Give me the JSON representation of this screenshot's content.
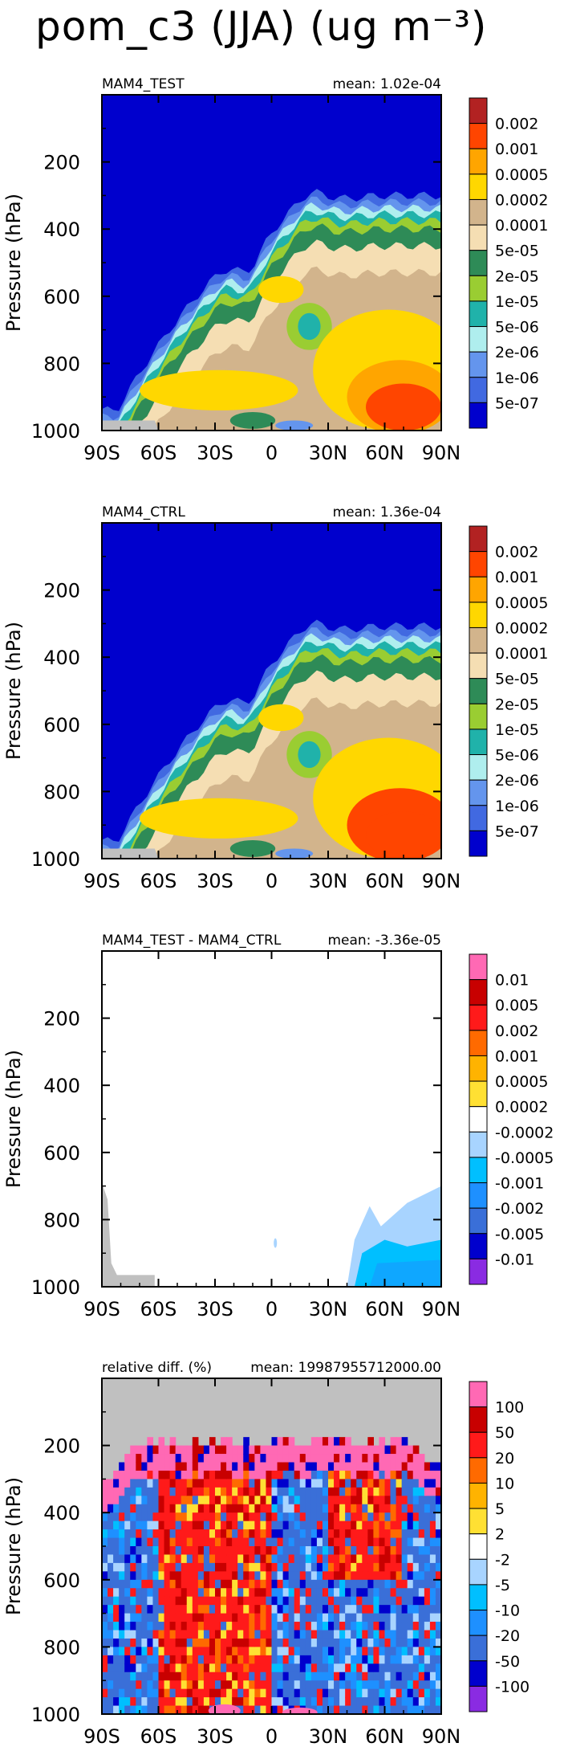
{
  "page_title": "pom_c3 (JJA) (ug m⁻³)",
  "chart_data": [
    {
      "type": "contour",
      "left_label": "MAM4_TEST",
      "right_label": "mean: 1.02e-04",
      "ylabel": "Pressure (hPa)",
      "y_ticks": [
        200,
        400,
        600,
        800,
        1000
      ],
      "x_ticks": [
        "90S",
        "60S",
        "30S",
        "0",
        "30N",
        "60N",
        "90N"
      ],
      "ylim": [
        1000,
        0
      ],
      "xlim": [
        -90,
        90
      ],
      "colorbar": {
        "labels": [
          "0.002",
          "0.001",
          "0.0005",
          "0.0002",
          "0.0001",
          "5e-05",
          "2e-05",
          "1e-05",
          "5e-06",
          "2e-06",
          "1e-06",
          "5e-07"
        ],
        "colors": [
          "#b22222",
          "#ff4500",
          "#ffa500",
          "#ffd700",
          "#d2b48c",
          "#f5deb3",
          "#2e8b57",
          "#9acd32",
          "#20b2aa",
          "#afeeee",
          "#6495ed",
          "#4169e1",
          "#0000cd"
        ]
      }
    },
    {
      "type": "contour",
      "left_label": "MAM4_CTRL",
      "right_label": "mean: 1.36e-04",
      "ylabel": "Pressure (hPa)",
      "y_ticks": [
        200,
        400,
        600,
        800,
        1000
      ],
      "x_ticks": [
        "90S",
        "60S",
        "30S",
        "0",
        "30N",
        "60N",
        "90N"
      ],
      "ylim": [
        1000,
        0
      ],
      "xlim": [
        -90,
        90
      ],
      "colorbar": {
        "labels": [
          "0.002",
          "0.001",
          "0.0005",
          "0.0002",
          "0.0001",
          "5e-05",
          "2e-05",
          "1e-05",
          "5e-06",
          "2e-06",
          "1e-06",
          "5e-07"
        ],
        "colors": [
          "#b22222",
          "#ff4500",
          "#ffa500",
          "#ffd700",
          "#d2b48c",
          "#f5deb3",
          "#2e8b57",
          "#9acd32",
          "#20b2aa",
          "#afeeee",
          "#6495ed",
          "#4169e1",
          "#0000cd"
        ]
      }
    },
    {
      "type": "contour",
      "left_label": "MAM4_TEST - MAM4_CTRL",
      "right_label": "mean: -3.36e-05",
      "ylabel": "Pressure (hPa)",
      "y_ticks": [
        200,
        400,
        600,
        800,
        1000
      ],
      "x_ticks": [
        "90S",
        "60S",
        "30S",
        "0",
        "30N",
        "60N",
        "90N"
      ],
      "ylim": [
        1000,
        0
      ],
      "xlim": [
        -90,
        90
      ],
      "colorbar": {
        "labels": [
          "0.01",
          "0.005",
          "0.002",
          "0.001",
          "0.0005",
          "0.0002",
          "-0.0002",
          "-0.0005",
          "-0.001",
          "-0.002",
          "-0.005",
          "-0.01"
        ],
        "colors": [
          "#ff69b4",
          "#c80000",
          "#ff1a1a",
          "#ff6a00",
          "#ffb300",
          "#ffe033",
          "#ffffff",
          "#a8d4ff",
          "#00bfff",
          "#1e90ff",
          "#3a6fd8",
          "#0000cd",
          "#8a2be2"
        ]
      }
    },
    {
      "type": "contour",
      "left_label": "relative diff. (%)",
      "right_label": "mean: 19987955712000.00",
      "ylabel": "Pressure (hPa)",
      "y_ticks": [
        200,
        400,
        600,
        800,
        1000
      ],
      "x_ticks": [
        "90S",
        "60S",
        "30S",
        "0",
        "30N",
        "60N",
        "90N"
      ],
      "ylim": [
        1000,
        0
      ],
      "xlim": [
        -90,
        90
      ],
      "colorbar": {
        "labels": [
          "100",
          "50",
          "20",
          "10",
          "5",
          "2",
          "-2",
          "-5",
          "-10",
          "-20",
          "-50",
          "-100"
        ],
        "colors": [
          "#ff69b4",
          "#c80000",
          "#ff1a1a",
          "#ff6a00",
          "#ffb300",
          "#ffe033",
          "#ffffff",
          "#a8d4ff",
          "#00bfff",
          "#1e90ff",
          "#3a6fd8",
          "#0000cd",
          "#8a2be2"
        ]
      }
    }
  ]
}
